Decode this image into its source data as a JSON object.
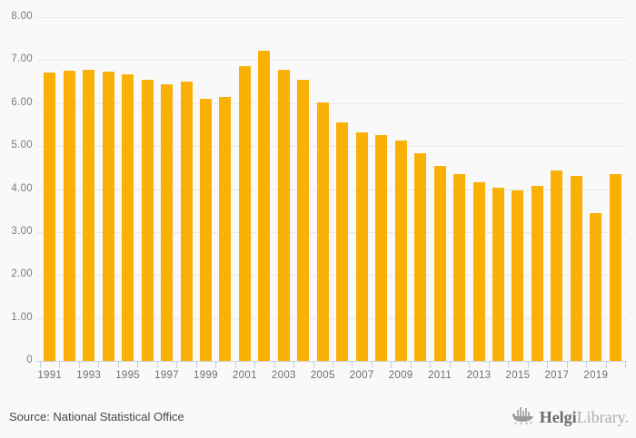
{
  "chart_data": {
    "type": "bar",
    "title": "",
    "x": [
      1991,
      1992,
      1993,
      1994,
      1995,
      1996,
      1997,
      1998,
      1999,
      2000,
      2001,
      2002,
      2003,
      2004,
      2005,
      2006,
      2007,
      2008,
      2009,
      2010,
      2011,
      2012,
      2013,
      2014,
      2015,
      2016,
      2017,
      2018,
      2019,
      2020
    ],
    "values": [
      6.72,
      6.76,
      6.78,
      6.73,
      6.67,
      6.55,
      6.43,
      6.5,
      6.11,
      6.15,
      6.86,
      7.22,
      6.78,
      6.54,
      6.02,
      5.55,
      5.33,
      5.26,
      5.14,
      4.83,
      4.53,
      4.35,
      4.16,
      4.04,
      3.96,
      4.07,
      4.44,
      4.31,
      3.45,
      4.35
    ],
    "ylim": [
      0,
      8
    ],
    "y_ticks": [
      {
        "label": "8.00",
        "value": 8
      },
      {
        "label": "7.00",
        "value": 7
      },
      {
        "label": "6.00",
        "value": 6
      },
      {
        "label": "5.00",
        "value": 5
      },
      {
        "label": "4.00",
        "value": 4
      },
      {
        "label": "3.00",
        "value": 3
      },
      {
        "label": "2.00",
        "value": 2
      },
      {
        "label": "1.00",
        "value": 1
      },
      {
        "label": "0",
        "value": 0
      }
    ],
    "x_tick_labels": [
      "1991",
      "1993",
      "1995",
      "1997",
      "1999",
      "2001",
      "2003",
      "2005",
      "2007",
      "2009",
      "2011",
      "2013",
      "2015",
      "2017",
      "2019"
    ],
    "grid": true,
    "legend": "none",
    "xlabel": "",
    "ylabel": ""
  },
  "colors": {
    "bar": "#FAB005",
    "background": "#f9f9f9",
    "gridline": "#e9e9e9",
    "axis_line": "#c7d2de",
    "tick": "#c7d2de"
  },
  "footer": {
    "source": "Source: National Statistical Office",
    "brand_primary": "Helgi",
    "brand_secondary": "Library."
  }
}
